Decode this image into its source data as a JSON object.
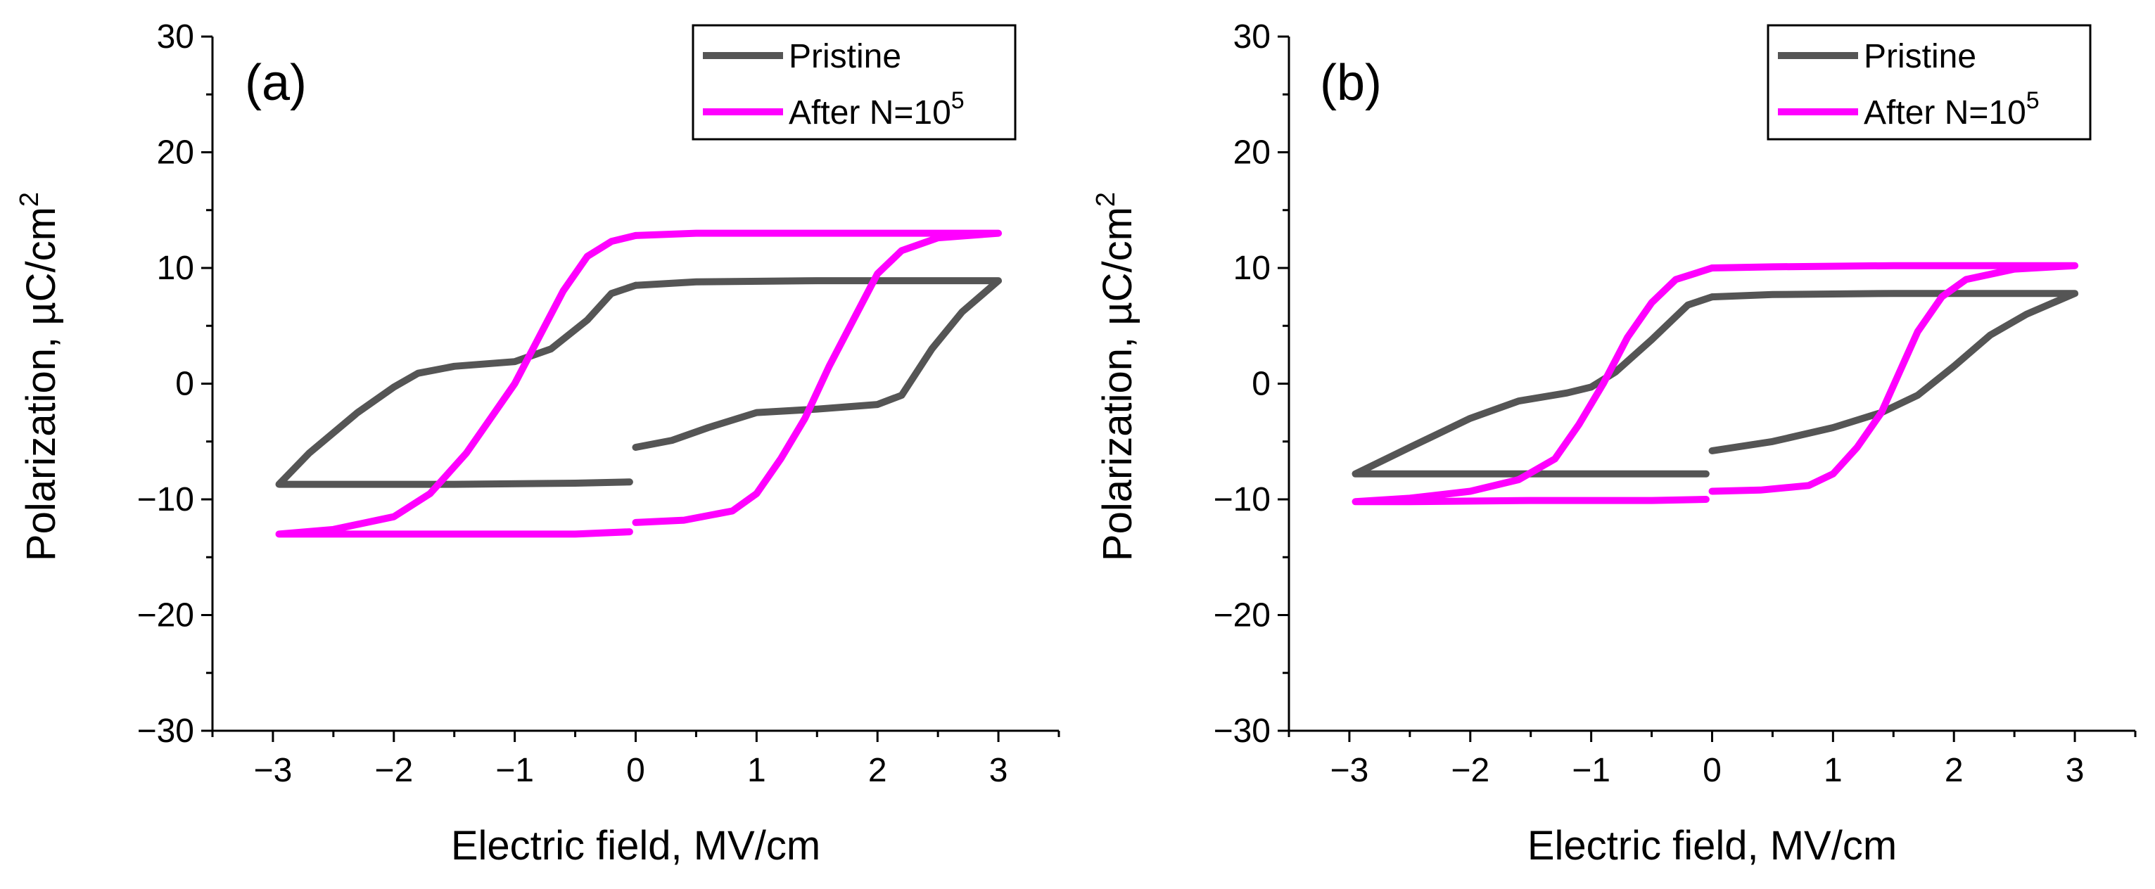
{
  "colors": {
    "pristine": "#555555",
    "cycled": "#ff00ff",
    "axis": "#000000"
  },
  "chart_data": [
    {
      "type": "line",
      "panel_label": "(a)",
      "xlabel": "Electric field, MV/cm",
      "ylabel": "Polarization, µC/cm",
      "ylabel_sup": "2",
      "xlim": [
        -3.5,
        3.5
      ],
      "ylim": [
        -30,
        30
      ],
      "xticks": [
        -3,
        -2,
        -1,
        0,
        1,
        2,
        3
      ],
      "yticks": [
        -30,
        -20,
        -10,
        0,
        10,
        20,
        30
      ],
      "xtick_labels": [
        "−3",
        "−2",
        "−1",
        "0",
        "1",
        "2",
        "3"
      ],
      "ytick_labels": [
        "−30",
        "−20",
        "−10",
        "0",
        "10",
        "20",
        "30"
      ],
      "legend": [
        {
          "label": "Pristine",
          "sup": ""
        },
        {
          "label": "After N=10",
          "sup": "5"
        }
      ],
      "legend_position": "top-right",
      "series": [
        {
          "name": "Pristine",
          "segments": [
            [
              [
                0,
                8.5
              ],
              [
                0.5,
                8.8
              ],
              [
                1.5,
                8.9
              ],
              [
                2.5,
                8.9
              ],
              [
                3,
                8.9
              ],
              [
                2.7,
                6.2
              ],
              [
                2.45,
                3.0
              ],
              [
                2.2,
                -1.0
              ],
              [
                2.0,
                -1.8
              ],
              [
                1.5,
                -2.2
              ],
              [
                1.0,
                -2.5
              ],
              [
                0.6,
                -3.8
              ],
              [
                0.3,
                -4.9
              ],
              [
                0,
                -5.5
              ]
            ],
            [
              [
                -0.05,
                -8.5
              ],
              [
                -0.5,
                -8.6
              ],
              [
                -1.5,
                -8.7
              ],
              [
                -2.5,
                -8.7
              ],
              [
                -2.95,
                -8.7
              ],
              [
                -2.7,
                -6.0
              ],
              [
                -2.3,
                -2.5
              ],
              [
                -2.0,
                -0.3
              ],
              [
                -1.8,
                0.9
              ],
              [
                -1.5,
                1.5
              ],
              [
                -1.0,
                1.9
              ],
              [
                -0.7,
                3.0
              ],
              [
                -0.4,
                5.5
              ],
              [
                -0.2,
                7.8
              ],
              [
                0,
                8.5
              ]
            ]
          ]
        },
        {
          "name": "After N=10^5",
          "segments": [
            [
              [
                0,
                12.8
              ],
              [
                0.5,
                13.0
              ],
              [
                1.5,
                13.0
              ],
              [
                2.5,
                13.0
              ],
              [
                3,
                13.0
              ],
              [
                2.5,
                12.6
              ],
              [
                2.2,
                11.5
              ],
              [
                2.0,
                9.5
              ],
              [
                1.8,
                5.5
              ],
              [
                1.6,
                1.5
              ],
              [
                1.4,
                -3.0
              ],
              [
                1.2,
                -6.5
              ],
              [
                1.0,
                -9.5
              ],
              [
                0.8,
                -11.0
              ],
              [
                0.4,
                -11.8
              ],
              [
                0,
                -12.0
              ]
            ],
            [
              [
                -0.05,
                -12.8
              ],
              [
                -0.5,
                -13.0
              ],
              [
                -1.5,
                -13.0
              ],
              [
                -2.5,
                -13.0
              ],
              [
                -2.95,
                -13.0
              ],
              [
                -2.5,
                -12.6
              ],
              [
                -2.0,
                -11.5
              ],
              [
                -1.7,
                -9.5
              ],
              [
                -1.4,
                -6.0
              ],
              [
                -1.2,
                -3.0
              ],
              [
                -1.0,
                0.0
              ],
              [
                -0.8,
                4.0
              ],
              [
                -0.6,
                8.0
              ],
              [
                -0.4,
                11.0
              ],
              [
                -0.2,
                12.3
              ],
              [
                0,
                12.8
              ]
            ]
          ]
        }
      ]
    },
    {
      "type": "line",
      "panel_label": "(b)",
      "xlabel": "Electric field, MV/cm",
      "ylabel": "Polarization, µC/cm",
      "ylabel_sup": "2",
      "xlim": [
        -3.5,
        3.5
      ],
      "ylim": [
        -30,
        30
      ],
      "xticks": [
        -3,
        -2,
        -1,
        0,
        1,
        2,
        3
      ],
      "yticks": [
        -30,
        -20,
        -10,
        0,
        10,
        20,
        30
      ],
      "xtick_labels": [
        "−3",
        "−2",
        "−1",
        "0",
        "1",
        "2",
        "3"
      ],
      "ytick_labels": [
        "−30",
        "−20",
        "−10",
        "0",
        "10",
        "20",
        "30"
      ],
      "legend": [
        {
          "label": "Pristine",
          "sup": ""
        },
        {
          "label": "After N=10",
          "sup": "5"
        }
      ],
      "legend_position": "top-right",
      "series": [
        {
          "name": "Pristine",
          "segments": [
            [
              [
                0,
                7.5
              ],
              [
                0.5,
                7.7
              ],
              [
                1.5,
                7.8
              ],
              [
                2.5,
                7.8
              ],
              [
                3,
                7.8
              ],
              [
                2.6,
                6.0
              ],
              [
                2.3,
                4.2
              ],
              [
                2.0,
                1.5
              ],
              [
                1.7,
                -1.0
              ],
              [
                1.4,
                -2.5
              ],
              [
                1.0,
                -3.8
              ],
              [
                0.5,
                -5.0
              ],
              [
                0,
                -5.8
              ]
            ],
            [
              [
                -0.05,
                -7.8
              ],
              [
                -0.5,
                -7.8
              ],
              [
                -1.5,
                -7.8
              ],
              [
                -2.5,
                -7.8
              ],
              [
                -2.95,
                -7.8
              ],
              [
                -2.5,
                -5.5
              ],
              [
                -2.0,
                -3.0
              ],
              [
                -1.6,
                -1.5
              ],
              [
                -1.2,
                -0.8
              ],
              [
                -1.0,
                -0.3
              ],
              [
                -0.8,
                1.0
              ],
              [
                -0.5,
                3.8
              ],
              [
                -0.2,
                6.8
              ],
              [
                0,
                7.5
              ]
            ]
          ]
        },
        {
          "name": "After N=10^5",
          "segments": [
            [
              [
                0,
                10.0
              ],
              [
                0.5,
                10.1
              ],
              [
                1.5,
                10.2
              ],
              [
                2.5,
                10.2
              ],
              [
                3,
                10.2
              ],
              [
                2.5,
                9.9
              ],
              [
                2.1,
                9.0
              ],
              [
                1.9,
                7.5
              ],
              [
                1.7,
                4.5
              ],
              [
                1.55,
                1.0
              ],
              [
                1.4,
                -2.5
              ],
              [
                1.2,
                -5.5
              ],
              [
                1.0,
                -7.8
              ],
              [
                0.8,
                -8.8
              ],
              [
                0.4,
                -9.2
              ],
              [
                0,
                -9.3
              ]
            ],
            [
              [
                -0.05,
                -10.0
              ],
              [
                -0.5,
                -10.1
              ],
              [
                -1.5,
                -10.1
              ],
              [
                -2.5,
                -10.2
              ],
              [
                -2.95,
                -10.2
              ],
              [
                -2.5,
                -9.9
              ],
              [
                -2.0,
                -9.3
              ],
              [
                -1.6,
                -8.3
              ],
              [
                -1.3,
                -6.5
              ],
              [
                -1.1,
                -3.5
              ],
              [
                -0.9,
                0.0
              ],
              [
                -0.7,
                4.0
              ],
              [
                -0.5,
                7.0
              ],
              [
                -0.3,
                9.0
              ],
              [
                0,
                10.0
              ]
            ]
          ]
        }
      ]
    }
  ]
}
